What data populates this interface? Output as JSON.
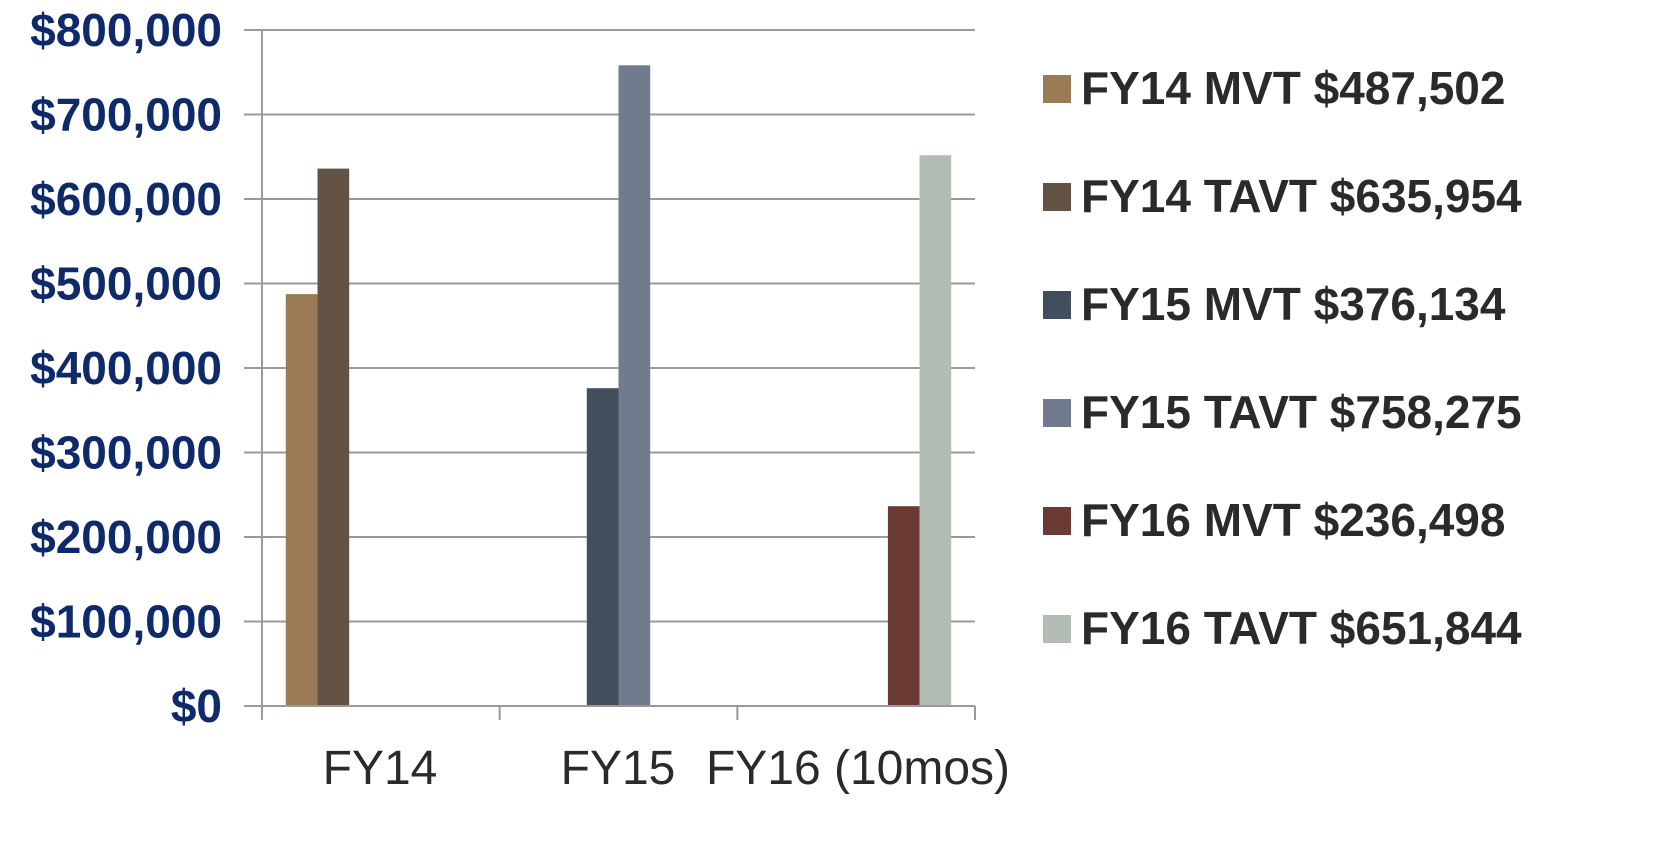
{
  "chart_data": {
    "type": "bar",
    "title": "",
    "xlabel": "",
    "ylabel": "",
    "ylim": [
      0,
      800000
    ],
    "yticks": [
      0,
      100000,
      200000,
      300000,
      400000,
      500000,
      600000,
      700000,
      800000
    ],
    "ytick_labels": [
      "$0",
      "$100,000",
      "$200,000",
      "$300,000",
      "$400,000",
      "$500,000",
      "$600,000",
      "$700,000",
      "$800,000"
    ],
    "categories": [
      "FY14",
      "FY15",
      "FY16 (10mos)"
    ],
    "grid": true,
    "legend_position": "right",
    "series": [
      {
        "name": "FY14 MVT $487,502",
        "color": "#9a7b56",
        "values": [
          487502,
          null,
          null
        ]
      },
      {
        "name": "FY14 TAVT $635,954",
        "color": "#635345",
        "values": [
          635954,
          null,
          null
        ]
      },
      {
        "name": "FY15 MVT $376,134",
        "color": "#414e5c",
        "values": [
          null,
          376134,
          null
        ]
      },
      {
        "name": "FY15 TAVT $758,275",
        "color": "#727b8d",
        "values": [
          null,
          758275,
          null
        ]
      },
      {
        "name": "FY16 MVT $236,498",
        "color": "#6b3a33",
        "values": [
          null,
          null,
          236498
        ]
      },
      {
        "name": "FY16 TAVT $651,844",
        "color": "#b4bdb3",
        "values": [
          null,
          null,
          651844
        ]
      }
    ]
  }
}
